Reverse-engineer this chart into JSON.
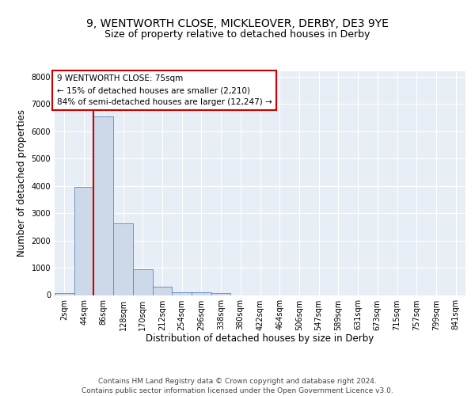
{
  "title_line1": "9, WENTWORTH CLOSE, MICKLEOVER, DERBY, DE3 9YE",
  "title_line2": "Size of property relative to detached houses in Derby",
  "xlabel": "Distribution of detached houses by size in Derby",
  "ylabel": "Number of detached properties",
  "bar_values": [
    75,
    3975,
    6550,
    2625,
    950,
    300,
    115,
    90,
    65,
    0,
    0,
    0,
    0,
    0,
    0,
    0,
    0,
    0,
    0,
    0,
    0
  ],
  "bar_labels": [
    "2sqm",
    "44sqm",
    "86sqm",
    "128sqm",
    "170sqm",
    "212sqm",
    "254sqm",
    "296sqm",
    "338sqm",
    "380sqm",
    "422sqm",
    "464sqm",
    "506sqm",
    "547sqm",
    "589sqm",
    "631sqm",
    "673sqm",
    "715sqm",
    "757sqm",
    "799sqm",
    "841sqm"
  ],
  "bar_color": "#cdd9e8",
  "bar_edge_color": "#5a8abf",
  "vline_color": "#cc0000",
  "vline_x": 1.5,
  "annotation_text": "9 WENTWORTH CLOSE: 75sqm\n← 15% of detached houses are smaller (2,210)\n84% of semi-detached houses are larger (12,247) →",
  "annotation_box_color": "#ffffff",
  "annotation_box_edge": "#cc0000",
  "ylim": [
    0,
    8200
  ],
  "yticks": [
    0,
    1000,
    2000,
    3000,
    4000,
    5000,
    6000,
    7000,
    8000
  ],
  "bg_color": "#e8eef5",
  "footer_text": "Contains HM Land Registry data © Crown copyright and database right 2024.\nContains public sector information licensed under the Open Government Licence v3.0.",
  "title_fontsize": 10,
  "subtitle_fontsize": 9,
  "axis_label_fontsize": 8.5,
  "tick_fontsize": 7,
  "footer_fontsize": 6.5,
  "ann_fontsize": 7.5
}
